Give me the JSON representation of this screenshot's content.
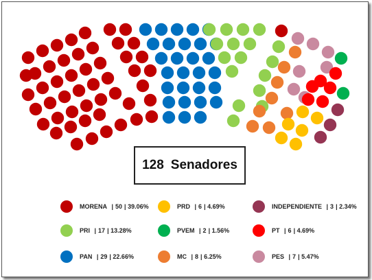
{
  "total": {
    "count": "128",
    "label": "Senadores"
  },
  "parties": [
    {
      "key": "morena",
      "name": "MORENA",
      "seats": "50",
      "pct": "39.06%",
      "color": "#C00000"
    },
    {
      "key": "pri",
      "name": "PRI",
      "seats": "17",
      "pct": "13.28%",
      "color": "#92D050"
    },
    {
      "key": "pan",
      "name": "PAN",
      "seats": "29",
      "pct": "22.66%",
      "color": "#0070C0"
    },
    {
      "key": "prd",
      "name": "PRD",
      "seats": "6",
      "pct": "4.69%",
      "color": "#FFC000"
    },
    {
      "key": "pvem",
      "name": "PVEM",
      "seats": "2",
      "pct": "1.56%",
      "color": "#00B050"
    },
    {
      "key": "mc",
      "name": "MC",
      "seats": "8",
      "pct": "6.25%",
      "color": "#ED7D31"
    },
    {
      "key": "independiente",
      "name": "INDEPENDIENTE",
      "seats": "3",
      "pct": "2.34%",
      "color": "#953553"
    },
    {
      "key": "pt",
      "name": "PT",
      "seats": "6",
      "pct": "4.69%",
      "color": "#FF0000"
    },
    {
      "key": "pes",
      "name": "PES",
      "seats": "7",
      "pct": "5.47%",
      "color": "#C9899F"
    }
  ],
  "chart_data": {
    "type": "parliament",
    "total_seats": 128,
    "series": [
      {
        "name": "MORENA",
        "value": 50,
        "percent": 39.06
      },
      {
        "name": "PRI",
        "value": 17,
        "percent": 13.28
      },
      {
        "name": "PAN",
        "value": 29,
        "percent": 22.66
      },
      {
        "name": "PRD",
        "value": 6,
        "percent": 4.69
      },
      {
        "name": "PVEM",
        "value": 2,
        "percent": 1.56
      },
      {
        "name": "MC",
        "value": 8,
        "percent": 6.25
      },
      {
        "name": "INDEPENDIENTE",
        "value": 3,
        "percent": 2.34
      },
      {
        "name": "PT",
        "value": 6,
        "percent": 4.69
      },
      {
        "name": "PES",
        "value": 7,
        "percent": 5.47
      }
    ]
  }
}
